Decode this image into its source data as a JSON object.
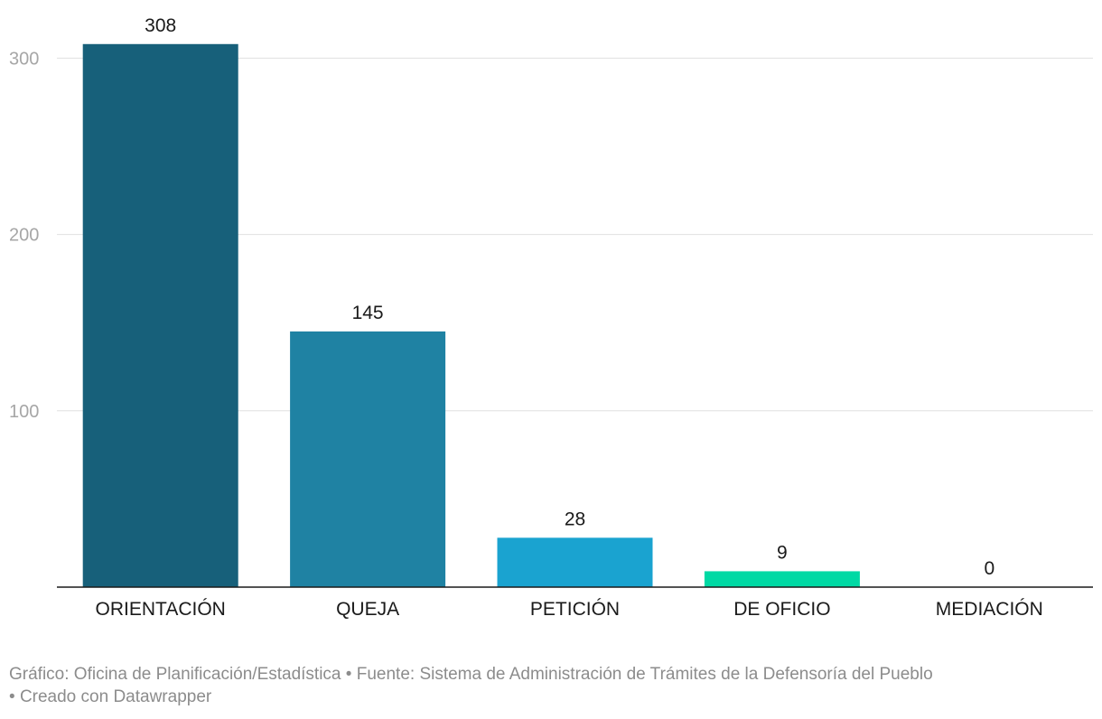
{
  "chart_data": {
    "type": "bar",
    "categories": [
      "ORIENTACIÓN",
      "QUEJA",
      "PETICIÓN",
      "DE OFICIO",
      "MEDIACIÓN"
    ],
    "values": [
      308,
      145,
      28,
      9,
      0
    ],
    "colors": [
      "#17607a",
      "#1f82a3",
      "#1aa3d0",
      "#00d9a4",
      "#00d9a4"
    ],
    "yticks": [
      100,
      200,
      300
    ],
    "ylim": [
      0,
      330
    ],
    "grid": true,
    "xlabel": "",
    "ylabel": ""
  },
  "footer": {
    "credit": "Gráfico: Oficina de Planificación/Estadística",
    "source": "Fuente: Sistema de Administración de Trámites de la Defensoría del Pueblo",
    "created_with": "Creado con Datawrapper",
    "separator": "•"
  }
}
